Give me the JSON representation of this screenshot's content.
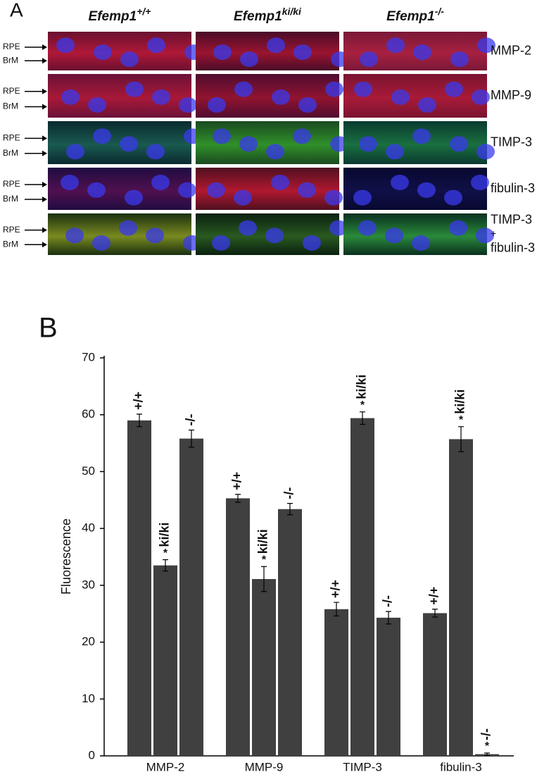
{
  "panel_a": {
    "label": "A",
    "columns": [
      {
        "base": "Efemp1",
        "sup": "+/+"
      },
      {
        "base": "Efemp1",
        "sup": "ki/ki"
      },
      {
        "base": "Efemp1",
        "sup": "-/-"
      }
    ],
    "rows": [
      [
        "MMP-2"
      ],
      [
        "MMP-9"
      ],
      [
        "TIMP-3"
      ],
      [
        "fibulin-3"
      ],
      [
        "TIMP-3",
        "+",
        "fibulin-3"
      ]
    ],
    "markers": [
      "RPE",
      "BrM"
    ]
  },
  "chart_data": {
    "type": "bar",
    "panel_label": "B",
    "ylabel": "Fluorescence",
    "categories": [
      "MMP-2",
      "MMP-9",
      "TIMP-3",
      "fibulin-3"
    ],
    "series": [
      {
        "name": "+/+",
        "color": "#404040",
        "values": [
          59,
          45.3,
          25.8,
          25.1
        ],
        "errors": [
          1.1,
          0.7,
          1.2,
          0.7
        ]
      },
      {
        "name": "ki/ki",
        "color": "#404040",
        "values": [
          33.5,
          31.1,
          59.4,
          55.7
        ],
        "errors": [
          1.0,
          2.2,
          1.1,
          2.2
        ],
        "significance": [
          "*",
          "*",
          "*",
          "*"
        ]
      },
      {
        "name": "-/-",
        "color": "#404040",
        "values": [
          55.8,
          43.4,
          24.3,
          0.3
        ],
        "errors": [
          1.5,
          1.0,
          1.1,
          0.2
        ],
        "significance": [
          null,
          null,
          null,
          "*"
        ]
      }
    ],
    "ylim": [
      0,
      70
    ],
    "yticks": [
      0,
      10,
      20,
      30,
      40,
      50,
      60,
      70
    ]
  }
}
